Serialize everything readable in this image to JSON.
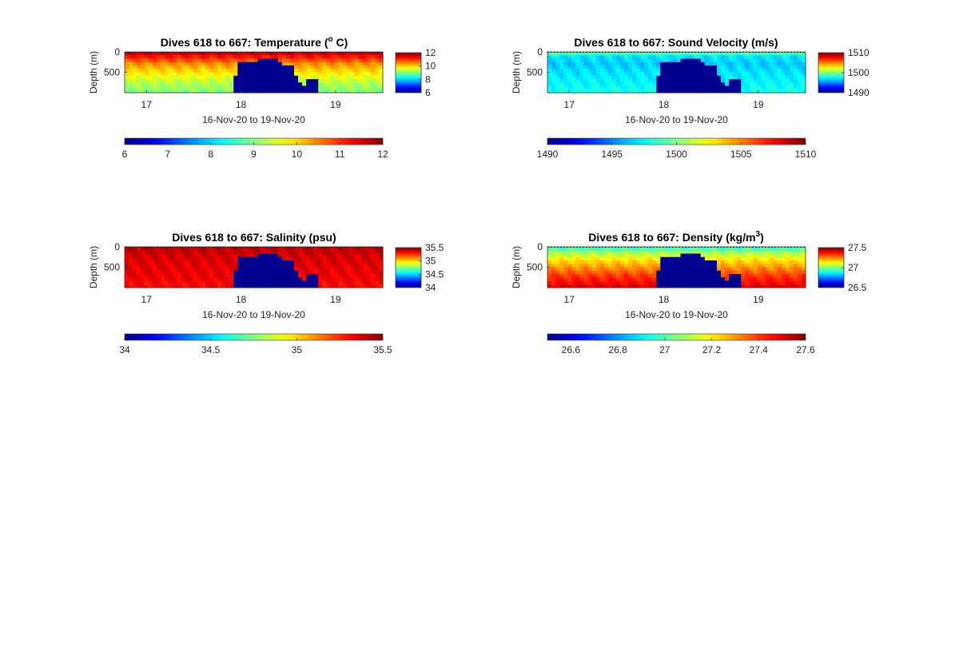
{
  "chart_data": [
    {
      "type": "heatmap",
      "title": "Dives 618 to 667: Temperature (°C)",
      "title_prefix": "Dives 618 to 667: Temperature (",
      "title_sup": "o",
      "title_suffix": " C)",
      "xlabel": "16-Nov-20 to 19-Nov-20",
      "ylabel": "Depth (m)",
      "xlim": [
        16.77,
        19.5
      ],
      "ylim": [
        1000,
        0
      ],
      "x_ticks": [
        17,
        18,
        19
      ],
      "y_ticks": [
        0,
        500
      ],
      "colormap": "jet",
      "clim": [
        6,
        12
      ],
      "colorbar_ticks": [
        6,
        8,
        10,
        12
      ],
      "bottom_colorbar_ticks": [
        6,
        7,
        8,
        9,
        10,
        11,
        12
      ],
      "profile": {
        "depths": [
          0,
          150,
          300,
          500,
          700,
          1000
        ],
        "values": [
          11.8,
          11.0,
          10.4,
          9.9,
          9.4,
          9.0
        ]
      },
      "no_data": {
        "x": [
          17.92,
          17.97,
          18.05,
          18.12,
          18.18,
          18.25,
          18.32,
          18.39,
          18.45,
          18.5,
          18.55,
          18.62,
          18.66,
          18.71,
          18.77,
          18.83
        ],
        "top_depth": [
          600,
          270,
          250,
          250,
          180,
          150,
          160,
          240,
          300,
          360,
          580,
          750,
          810,
          700,
          660,
          1000
        ]
      }
    },
    {
      "type": "heatmap",
      "title": "Dives 618 to 667: Sound Velocity (m/s)",
      "xlabel": "16-Nov-20 to 19-Nov-20",
      "ylabel": "Depth (m)",
      "xlim": [
        16.77,
        19.5
      ],
      "ylim": [
        1000,
        0
      ],
      "x_ticks": [
        17,
        18,
        19
      ],
      "y_ticks": [
        0,
        500
      ],
      "colormap": "jet",
      "clim": [
        1490,
        1510
      ],
      "colorbar_ticks": [
        1490,
        1500,
        1510
      ],
      "bottom_colorbar_ticks": [
        1490,
        1495,
        1500,
        1505,
        1510
      ],
      "profile": {
        "depths": [
          0,
          100,
          300,
          500,
          800,
          1000
        ],
        "values": [
          1500,
          1497,
          1496.5,
          1497,
          1497.5,
          1498
        ]
      },
      "no_data": {
        "x": [
          17.92,
          17.97,
          18.05,
          18.12,
          18.18,
          18.25,
          18.32,
          18.39,
          18.45,
          18.5,
          18.55,
          18.62,
          18.66,
          18.71,
          18.77,
          18.83
        ],
        "top_depth": [
          600,
          270,
          250,
          250,
          180,
          150,
          160,
          240,
          300,
          360,
          580,
          750,
          810,
          700,
          660,
          1000
        ]
      }
    },
    {
      "type": "heatmap",
      "title": "Dives 618 to 667: Salinity (psu)",
      "xlabel": "16-Nov-20 to 19-Nov-20",
      "ylabel": "Depth (m)",
      "xlim": [
        16.77,
        19.5
      ],
      "ylim": [
        1000,
        0
      ],
      "x_ticks": [
        17,
        18,
        19
      ],
      "y_ticks": [
        0,
        500
      ],
      "colormap": "jet",
      "clim": [
        34,
        35.5
      ],
      "colorbar_ticks": [
        34,
        34.5,
        35,
        35.5
      ],
      "bottom_colorbar_ticks": [
        34,
        34.5,
        35,
        35.5
      ],
      "profile": {
        "depths": [
          0,
          200,
          500,
          800,
          1000
        ],
        "values": [
          35.42,
          35.38,
          35.35,
          35.33,
          35.3
        ]
      },
      "no_data": {
        "x": [
          17.92,
          17.97,
          18.05,
          18.12,
          18.18,
          18.25,
          18.32,
          18.39,
          18.45,
          18.5,
          18.55,
          18.62,
          18.66,
          18.71,
          18.77,
          18.83
        ],
        "top_depth": [
          600,
          270,
          250,
          250,
          180,
          150,
          160,
          240,
          300,
          360,
          580,
          750,
          810,
          700,
          660,
          1000
        ]
      }
    },
    {
      "type": "heatmap",
      "title": "Dives 618 to 667: Density (kg/m³)",
      "title_prefix": "Dives 618 to 667: Density (kg/m",
      "title_sup": "3",
      "title_suffix": ")",
      "xlabel": "16-Nov-20 to 19-Nov-20",
      "ylabel": "Depth (m)",
      "xlim": [
        16.77,
        19.5
      ],
      "ylim": [
        1000,
        0
      ],
      "x_ticks": [
        17,
        18,
        19
      ],
      "y_ticks": [
        0,
        500
      ],
      "colormap": "jet",
      "clim": [
        26.5,
        27.6
      ],
      "colorbar_ticks": [
        26.5,
        27,
        27.5
      ],
      "bottom_colorbar_ticks": [
        26.6,
        26.8,
        27,
        27.2,
        27.4,
        27.6
      ],
      "profile": {
        "depths": [
          0,
          100,
          300,
          500,
          700,
          1000
        ],
        "values": [
          26.95,
          27.05,
          27.2,
          27.3,
          27.4,
          27.5
        ]
      },
      "no_data": {
        "x": [
          17.92,
          17.97,
          18.05,
          18.12,
          18.18,
          18.25,
          18.32,
          18.39,
          18.45,
          18.5,
          18.55,
          18.62,
          18.66,
          18.71,
          18.77,
          18.83
        ],
        "top_depth": [
          600,
          270,
          250,
          250,
          180,
          150,
          160,
          240,
          300,
          360,
          580,
          750,
          810,
          700,
          660,
          1000
        ]
      }
    }
  ]
}
